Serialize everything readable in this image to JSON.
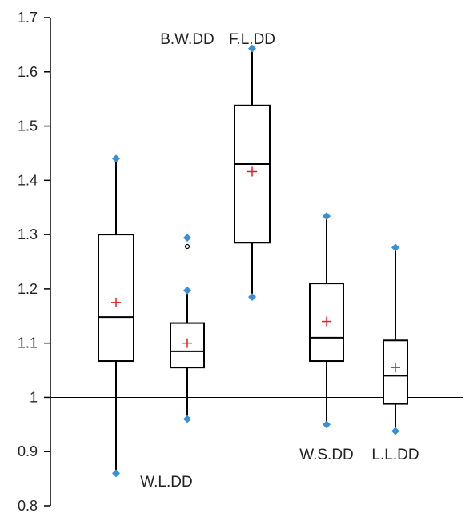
{
  "chart_data": {
    "type": "box",
    "title": "",
    "xlabel": "",
    "ylabel": "",
    "ylim": [
      0.8,
      1.7
    ],
    "yticks": [
      0.8,
      0.9,
      1.0,
      1.1,
      1.2,
      1.3,
      1.4,
      1.5,
      1.6,
      1.7
    ],
    "ytick_labels": [
      "0.8",
      "0.9",
      "1",
      "1.1",
      "1.2",
      "1.3",
      "1.4",
      "1.5",
      "1.6",
      "1.7"
    ],
    "reference_line": 1.0,
    "grid": false,
    "legend": "none",
    "colors": {
      "box": "#000000",
      "whisker_marker": "#3a8fd6",
      "mean_marker": "#e02020",
      "axis": "#000000"
    },
    "boxes": [
      {
        "label": "W.L.DD",
        "label_position": "below",
        "min": 0.86,
        "q1": 1.067,
        "median": 1.148,
        "q3": 1.3,
        "max": 1.44,
        "mean": 1.175,
        "outliers": []
      },
      {
        "label": "B.W.DD",
        "label_position": "above",
        "min": 0.96,
        "q1": 1.055,
        "median": 1.085,
        "q3": 1.137,
        "max": 1.197,
        "mean": 1.1,
        "outliers": [
          1.278,
          1.294
        ]
      },
      {
        "label": "F.L.DD",
        "label_position": "above",
        "min": 1.185,
        "q1": 1.285,
        "median": 1.43,
        "q3": 1.538,
        "max": 1.643,
        "mean": 1.416,
        "outliers": []
      },
      {
        "label": "W.S.DD",
        "label_position": "below",
        "min": 0.95,
        "q1": 1.067,
        "median": 1.11,
        "q3": 1.21,
        "max": 1.334,
        "mean": 1.14,
        "outliers": []
      },
      {
        "label": "L.L.DD",
        "label_position": "below",
        "min": 0.938,
        "q1": 0.988,
        "median": 1.04,
        "q3": 1.105,
        "max": 1.276,
        "mean": 1.055,
        "outliers": []
      }
    ]
  }
}
